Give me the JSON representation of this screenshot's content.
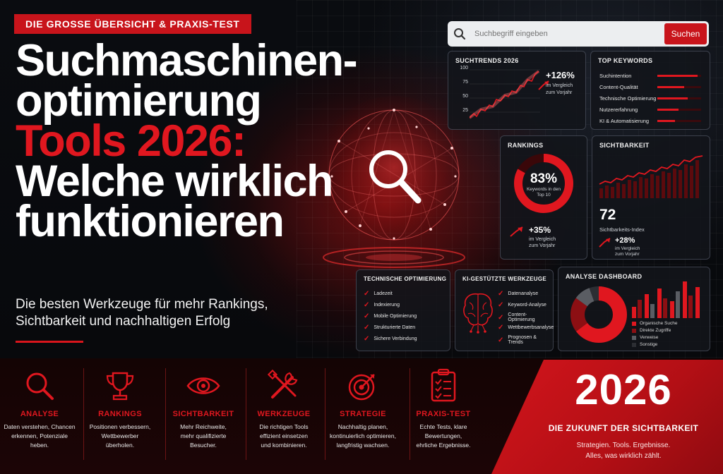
{
  "badge": "DIE GROSSE ÜBERSICHT & PRAXIS-TEST",
  "title": {
    "line1": "Suchmaschinen-",
    "line2": "optimierung",
    "line3": "Tools 2026:",
    "line4": "Welche wirklich",
    "line5": "funktionieren"
  },
  "subtitle": {
    "line1": "Die besten Werkzeuge für mehr Rankings,",
    "line2": "Sichtbarkeit und nachhaltigen Erfolg"
  },
  "search": {
    "placeholder": "Suchbegriff eingeben",
    "button": "Suchen"
  },
  "suchtrends": {
    "title": "SUCHTRENDS 2026",
    "yticks": [
      "100",
      "75",
      "50",
      "25"
    ],
    "change": "+126%",
    "note1": "im Vergleich",
    "note2": "zum Vorjahr"
  },
  "top_keywords": {
    "title": "TOP KEYWORDS",
    "items": [
      {
        "label": "Suchintention",
        "level": 0.92
      },
      {
        "label": "Content-Qualität",
        "level": 0.62
      },
      {
        "label": "Technische Optimierung",
        "level": 0.7
      },
      {
        "label": "Nutzererfahrung",
        "level": 0.48
      },
      {
        "label": "KI & Automatisierung",
        "level": 0.4
      }
    ]
  },
  "rankings": {
    "title": "RANKINGS",
    "percent": "83%",
    "percent_value": 0.83,
    "label1": "Keywords in den",
    "label2": "Top 10",
    "change": "+35%",
    "note1": "im Vergleich",
    "note2": "zum Vorjahr"
  },
  "sichtbarkeit": {
    "title": "SICHTBARKEIT",
    "value": "72",
    "label": "Sichtbarkeits-Index",
    "change": "+28%",
    "note1": "im Vergleich",
    "note2": "zum Vorjahr"
  },
  "technische": {
    "title": "TECHNISCHE OPTIMIERUNG",
    "items": [
      "Ladezeit",
      "Indexierung",
      "Mobile Optimierung",
      "Strukturierte Daten",
      "Sichere Verbindung"
    ]
  },
  "ki": {
    "title": "KI-GESTÜTZTE WERKZEUGE",
    "items": [
      "Datenanalyse",
      "Keyword-Analyse",
      "Content-Optimierung",
      "Wettbewerbsanalyse",
      "Prognosen & Trends"
    ]
  },
  "analyse": {
    "title": "ANALYSE DASHBOARD",
    "legend": [
      "Organische Suche",
      "Direkte Zugriffe",
      "Verweise",
      "Sonstige"
    ]
  },
  "features": [
    {
      "icon": "magnifier-icon",
      "label": "ANALYSE",
      "desc1": "Daten verstehen, Chancen",
      "desc2": "erkennen, Potenziale",
      "desc3": "heben."
    },
    {
      "icon": "trophy-icon",
      "label": "RANKINGS",
      "desc1": "Positionen verbessern,",
      "desc2": "Wettbewerber",
      "desc3": "überholen."
    },
    {
      "icon": "eye-icon",
      "label": "SICHTBARKEIT",
      "desc1": "Mehr Reichweite,",
      "desc2": "mehr qualifizierte",
      "desc3": "Besucher."
    },
    {
      "icon": "tools-icon",
      "label": "WERKZEUGE",
      "desc1": "Die richtigen Tools",
      "desc2": "effizient einsetzen",
      "desc3": "und kombinieren."
    },
    {
      "icon": "target-icon",
      "label": "STRATEGIE",
      "desc1": "Nachhaltig planen,",
      "desc2": "kontinuierlich optimieren,",
      "desc3": "langfristig wachsen."
    },
    {
      "icon": "checklist-icon",
      "label": "PRAXIS-TEST",
      "desc1": "Echte Tests, klare",
      "desc2": "Bewertungen,",
      "desc3": "ehrliche Ergebnisse."
    }
  ],
  "year_box": {
    "year": "2026",
    "headline": "DIE ZUKUNFT DER SICHTBARKEIT",
    "desc1": "Strategien. Tools. Ergebnisse.",
    "desc2": "Alles, was wirklich zählt."
  },
  "colors": {
    "accent": "#e0171f",
    "background": "#07080b",
    "panel": "#12141a"
  }
}
